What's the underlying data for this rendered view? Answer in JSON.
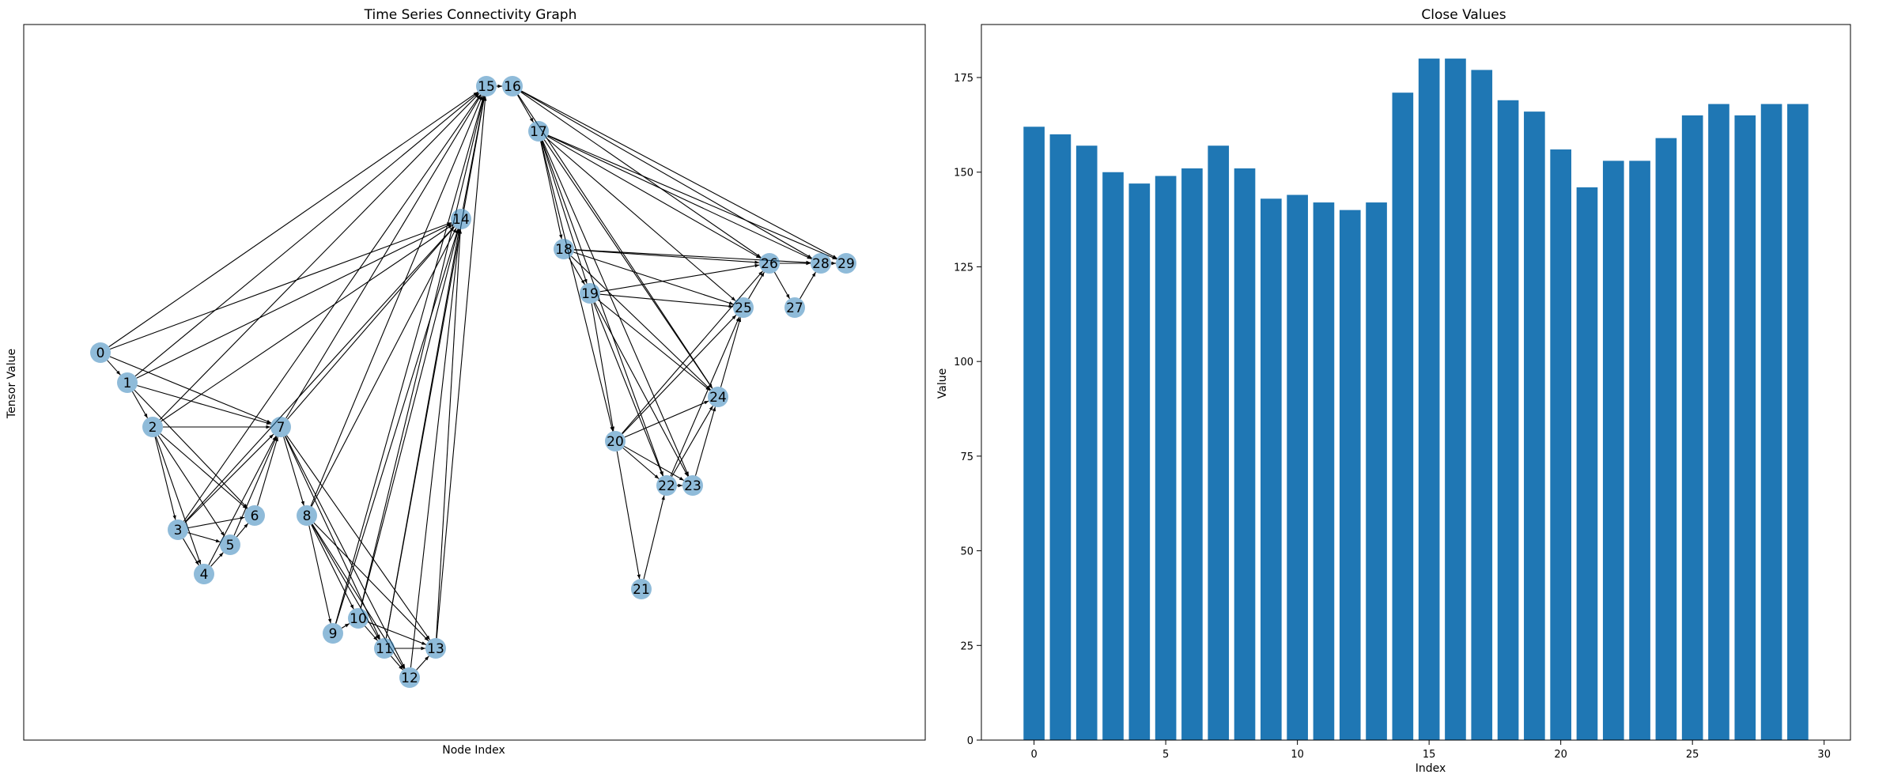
{
  "graph": {
    "title": "Time Series Connectivity Graph",
    "xlabel": "Node Index",
    "ylabel": "Tensor Value",
    "node_color": "#1f77b4",
    "edge_color": "#000000",
    "nodes": [
      {
        "id": "0",
        "label": "0",
        "x": 0,
        "y": 162
      },
      {
        "id": "1",
        "label": "1",
        "x": 1,
        "y": 160
      },
      {
        "id": "2",
        "label": "2",
        "x": 2,
        "y": 157
      },
      {
        "id": "3",
        "label": "3",
        "x": 3,
        "y": 150
      },
      {
        "id": "4",
        "label": "4",
        "x": 4,
        "y": 147
      },
      {
        "id": "5",
        "label": "5",
        "x": 5,
        "y": 149
      },
      {
        "id": "6",
        "label": "6",
        "x": 6,
        "y": 151
      },
      {
        "id": "7",
        "label": "7",
        "x": 7,
        "y": 157
      },
      {
        "id": "8",
        "label": "8",
        "x": 8,
        "y": 151
      },
      {
        "id": "9",
        "label": "9",
        "x": 9,
        "y": 143
      },
      {
        "id": "10",
        "label": "10",
        "x": 10,
        "y": 144
      },
      {
        "id": "11",
        "label": "11",
        "x": 11,
        "y": 142
      },
      {
        "id": "12",
        "label": "12",
        "x": 12,
        "y": 140
      },
      {
        "id": "13",
        "label": "13",
        "x": 13,
        "y": 142
      },
      {
        "id": "14",
        "label": "14",
        "x": 14,
        "y": 171
      },
      {
        "id": "15",
        "label": "15",
        "x": 15,
        "y": 180
      },
      {
        "id": "16",
        "label": "16",
        "x": 16,
        "y": 180
      },
      {
        "id": "17",
        "label": "17",
        "x": 17,
        "y": 177
      },
      {
        "id": "18",
        "label": "18",
        "x": 18,
        "y": 169
      },
      {
        "id": "19",
        "label": "19",
        "x": 19,
        "y": 166
      },
      {
        "id": "20",
        "label": "20",
        "x": 20,
        "y": 156
      },
      {
        "id": "21",
        "label": "21",
        "x": 21,
        "y": 146
      },
      {
        "id": "22",
        "label": "22",
        "x": 22,
        "y": 153
      },
      {
        "id": "23",
        "label": "23",
        "x": 23,
        "y": 153
      },
      {
        "id": "24",
        "label": "24",
        "x": 24,
        "y": 159
      },
      {
        "id": "25",
        "label": "25",
        "x": 25,
        "y": 165
      },
      {
        "id": "26",
        "label": "26",
        "x": 26,
        "y": 168
      },
      {
        "id": "27",
        "label": "27",
        "x": 27,
        "y": 165
      },
      {
        "id": "28",
        "label": "28",
        "x": 28,
        "y": 168
      },
      {
        "id": "29",
        "label": "29",
        "x": 29,
        "y": 168
      }
    ],
    "edges": [
      [
        0,
        1
      ],
      [
        0,
        7
      ],
      [
        0,
        14
      ],
      [
        0,
        15
      ],
      [
        1,
        2
      ],
      [
        1,
        6
      ],
      [
        1,
        7
      ],
      [
        1,
        14
      ],
      [
        1,
        15
      ],
      [
        2,
        3
      ],
      [
        2,
        4
      ],
      [
        2,
        5
      ],
      [
        2,
        6
      ],
      [
        2,
        7
      ],
      [
        2,
        14
      ],
      [
        2,
        15
      ],
      [
        3,
        4
      ],
      [
        3,
        5
      ],
      [
        3,
        6
      ],
      [
        3,
        7
      ],
      [
        3,
        14
      ],
      [
        3,
        15
      ],
      [
        4,
        5
      ],
      [
        4,
        7
      ],
      [
        5,
        6
      ],
      [
        5,
        7
      ],
      [
        6,
        7
      ],
      [
        7,
        8
      ],
      [
        7,
        11
      ],
      [
        7,
        12
      ],
      [
        7,
        13
      ],
      [
        7,
        14
      ],
      [
        7,
        15
      ],
      [
        8,
        9
      ],
      [
        8,
        10
      ],
      [
        8,
        11
      ],
      [
        8,
        12
      ],
      [
        8,
        13
      ],
      [
        8,
        14
      ],
      [
        8,
        15
      ],
      [
        9,
        10
      ],
      [
        9,
        14
      ],
      [
        9,
        15
      ],
      [
        10,
        11
      ],
      [
        10,
        13
      ],
      [
        10,
        14
      ],
      [
        10,
        15
      ],
      [
        11,
        12
      ],
      [
        11,
        13
      ],
      [
        11,
        14
      ],
      [
        11,
        15
      ],
      [
        12,
        13
      ],
      [
        12,
        14
      ],
      [
        13,
        14
      ],
      [
        13,
        15
      ],
      [
        14,
        15
      ],
      [
        15,
        16
      ],
      [
        16,
        17
      ],
      [
        16,
        24
      ],
      [
        16,
        26
      ],
      [
        16,
        28
      ],
      [
        16,
        29
      ],
      [
        17,
        18
      ],
      [
        17,
        19
      ],
      [
        17,
        20
      ],
      [
        17,
        22
      ],
      [
        17,
        23
      ],
      [
        17,
        24
      ],
      [
        17,
        25
      ],
      [
        17,
        26
      ],
      [
        17,
        28
      ],
      [
        17,
        29
      ],
      [
        18,
        19
      ],
      [
        18,
        24
      ],
      [
        18,
        25
      ],
      [
        18,
        26
      ],
      [
        18,
        28
      ],
      [
        19,
        20
      ],
      [
        19,
        22
      ],
      [
        19,
        23
      ],
      [
        19,
        24
      ],
      [
        19,
        25
      ],
      [
        19,
        26
      ],
      [
        20,
        21
      ],
      [
        20,
        22
      ],
      [
        20,
        23
      ],
      [
        20,
        24
      ],
      [
        20,
        25
      ],
      [
        20,
        26
      ],
      [
        21,
        22
      ],
      [
        22,
        23
      ],
      [
        22,
        24
      ],
      [
        22,
        25
      ],
      [
        23,
        24
      ],
      [
        24,
        25
      ],
      [
        25,
        26
      ],
      [
        26,
        27
      ],
      [
        26,
        28
      ],
      [
        27,
        28
      ],
      [
        28,
        29
      ]
    ]
  },
  "chart_data": {
    "type": "bar",
    "title": "Close Values",
    "xlabel": "Index",
    "ylabel": "Value",
    "categories": [
      0,
      1,
      2,
      3,
      4,
      5,
      6,
      7,
      8,
      9,
      10,
      11,
      12,
      13,
      14,
      15,
      16,
      17,
      18,
      19,
      20,
      21,
      22,
      23,
      24,
      25,
      26,
      27,
      28,
      29
    ],
    "values": [
      162,
      160,
      157,
      150,
      147,
      149,
      151,
      157,
      151,
      143,
      144,
      142,
      140,
      142,
      171,
      180,
      180,
      177,
      169,
      166,
      156,
      146,
      153,
      153,
      159,
      165,
      168,
      165,
      168,
      168
    ],
    "xlim": [
      -2,
      31
    ],
    "ylim": [
      0,
      189
    ],
    "xticks": [
      0,
      5,
      10,
      15,
      20,
      25,
      30
    ],
    "yticks": [
      0,
      25,
      50,
      75,
      100,
      125,
      150,
      175
    ],
    "bar_color": "#1f77b4"
  }
}
